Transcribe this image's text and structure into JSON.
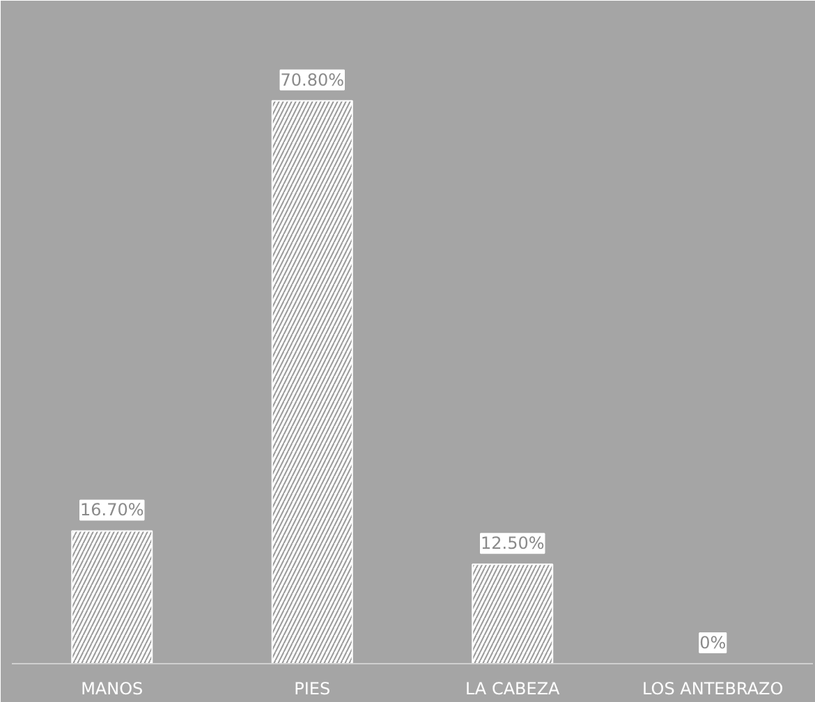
{
  "chart_data": {
    "type": "bar",
    "categories": [
      "MANOS",
      "PIES",
      "LA CABEZA",
      "LOS ANTEBRAZO"
    ],
    "values": [
      16.7,
      70.8,
      12.5,
      0
    ],
    "value_labels": [
      "16.70%",
      "70.80%",
      "12.50%",
      "0%"
    ],
    "color": "#ffffff",
    "ylim": [
      0,
      82
    ]
  }
}
